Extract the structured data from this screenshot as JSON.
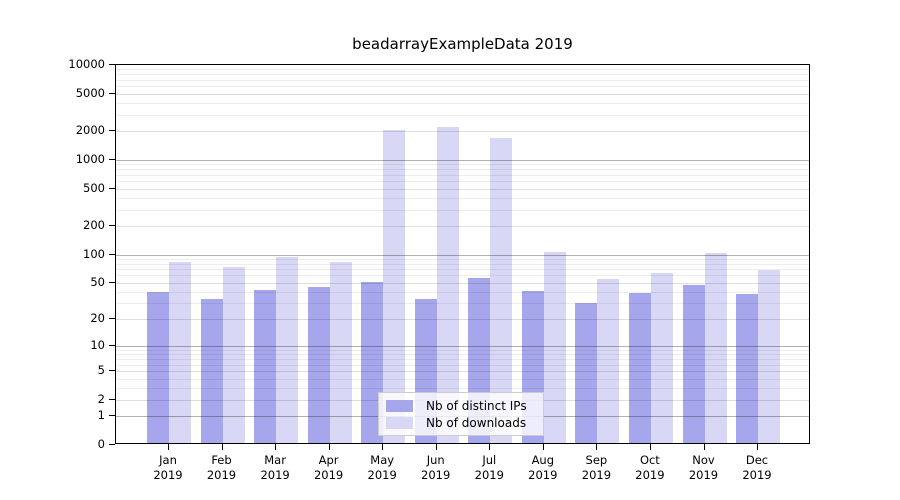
{
  "chart_data": {
    "type": "bar",
    "title": "beadarrayExampleData 2019",
    "categories": [
      "Jan 2019",
      "Feb 2019",
      "Mar 2019",
      "Apr 2019",
      "May 2019",
      "Jun 2019",
      "Jul 2019",
      "Aug 2019",
      "Sep 2019",
      "Oct 2019",
      "Nov 2019",
      "Dec 2019"
    ],
    "series": [
      {
        "name": "Nb of distinct IPs",
        "color": "#a6a6ec",
        "values": [
          38,
          32,
          40,
          43,
          49,
          32,
          53,
          39,
          29,
          37,
          45,
          36
        ]
      },
      {
        "name": "Nb of downloads",
        "color": "#d8d8f6",
        "values": [
          79,
          71,
          89,
          79,
          1970,
          2100,
          1615,
          101,
          52,
          60,
          100,
          66
        ]
      }
    ],
    "xlabel": "",
    "ylabel": "",
    "y_scale": "log10(1+x)",
    "ylim": [
      0,
      10000
    ],
    "y_ticks": [
      0,
      1,
      2,
      5,
      10,
      20,
      50,
      100,
      200,
      500,
      1000,
      2000,
      5000,
      10000
    ],
    "y_decade_ticks": [
      1,
      10,
      100,
      1000
    ],
    "y_minor_multipliers": [
      3,
      4,
      6,
      7,
      8,
      9
    ],
    "grid": true,
    "legend_position": "inside-bottom-center",
    "colors": {
      "frame": "#000000",
      "grid_decade": "rgba(0,0,0,0.30)",
      "grid_labeled": "rgba(0,0,0,0.13)",
      "grid_minor": "rgba(0,0,0,0.07)"
    }
  }
}
